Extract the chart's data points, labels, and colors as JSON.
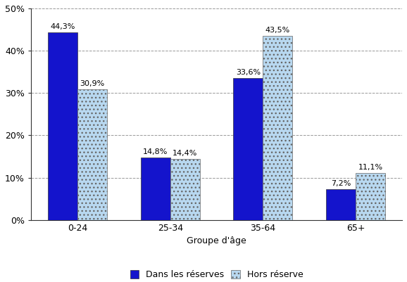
{
  "categories": [
    "0-24",
    "25-34",
    "35-64",
    "65+"
  ],
  "series": [
    {
      "label": "Dans les réserves",
      "values": [
        44.3,
        14.8,
        33.6,
        7.2
      ],
      "color": "#1414CC",
      "hatch": null
    },
    {
      "label": "Hors réserve",
      "values": [
        30.9,
        14.4,
        43.5,
        11.1
      ],
      "color": "#B8D8F0",
      "hatch": "..."
    }
  ],
  "value_labels": [
    [
      "44,3%",
      "14,8%",
      "33,6%",
      "7,2%"
    ],
    [
      "30,9%",
      "14,4%",
      "43,5%",
      "11,1%"
    ]
  ],
  "xlabel": "Groupe d'âge",
  "ylim": [
    0,
    50
  ],
  "yticks": [
    0,
    10,
    20,
    30,
    40,
    50
  ],
  "ytick_labels": [
    "0%",
    "10%",
    "20%",
    "30%",
    "40%",
    "50%"
  ],
  "bar_width": 0.32,
  "grid_color": "#999999",
  "background_color": "#ffffff",
  "label_fontsize": 8,
  "axis_fontsize": 9,
  "legend_fontsize": 9
}
